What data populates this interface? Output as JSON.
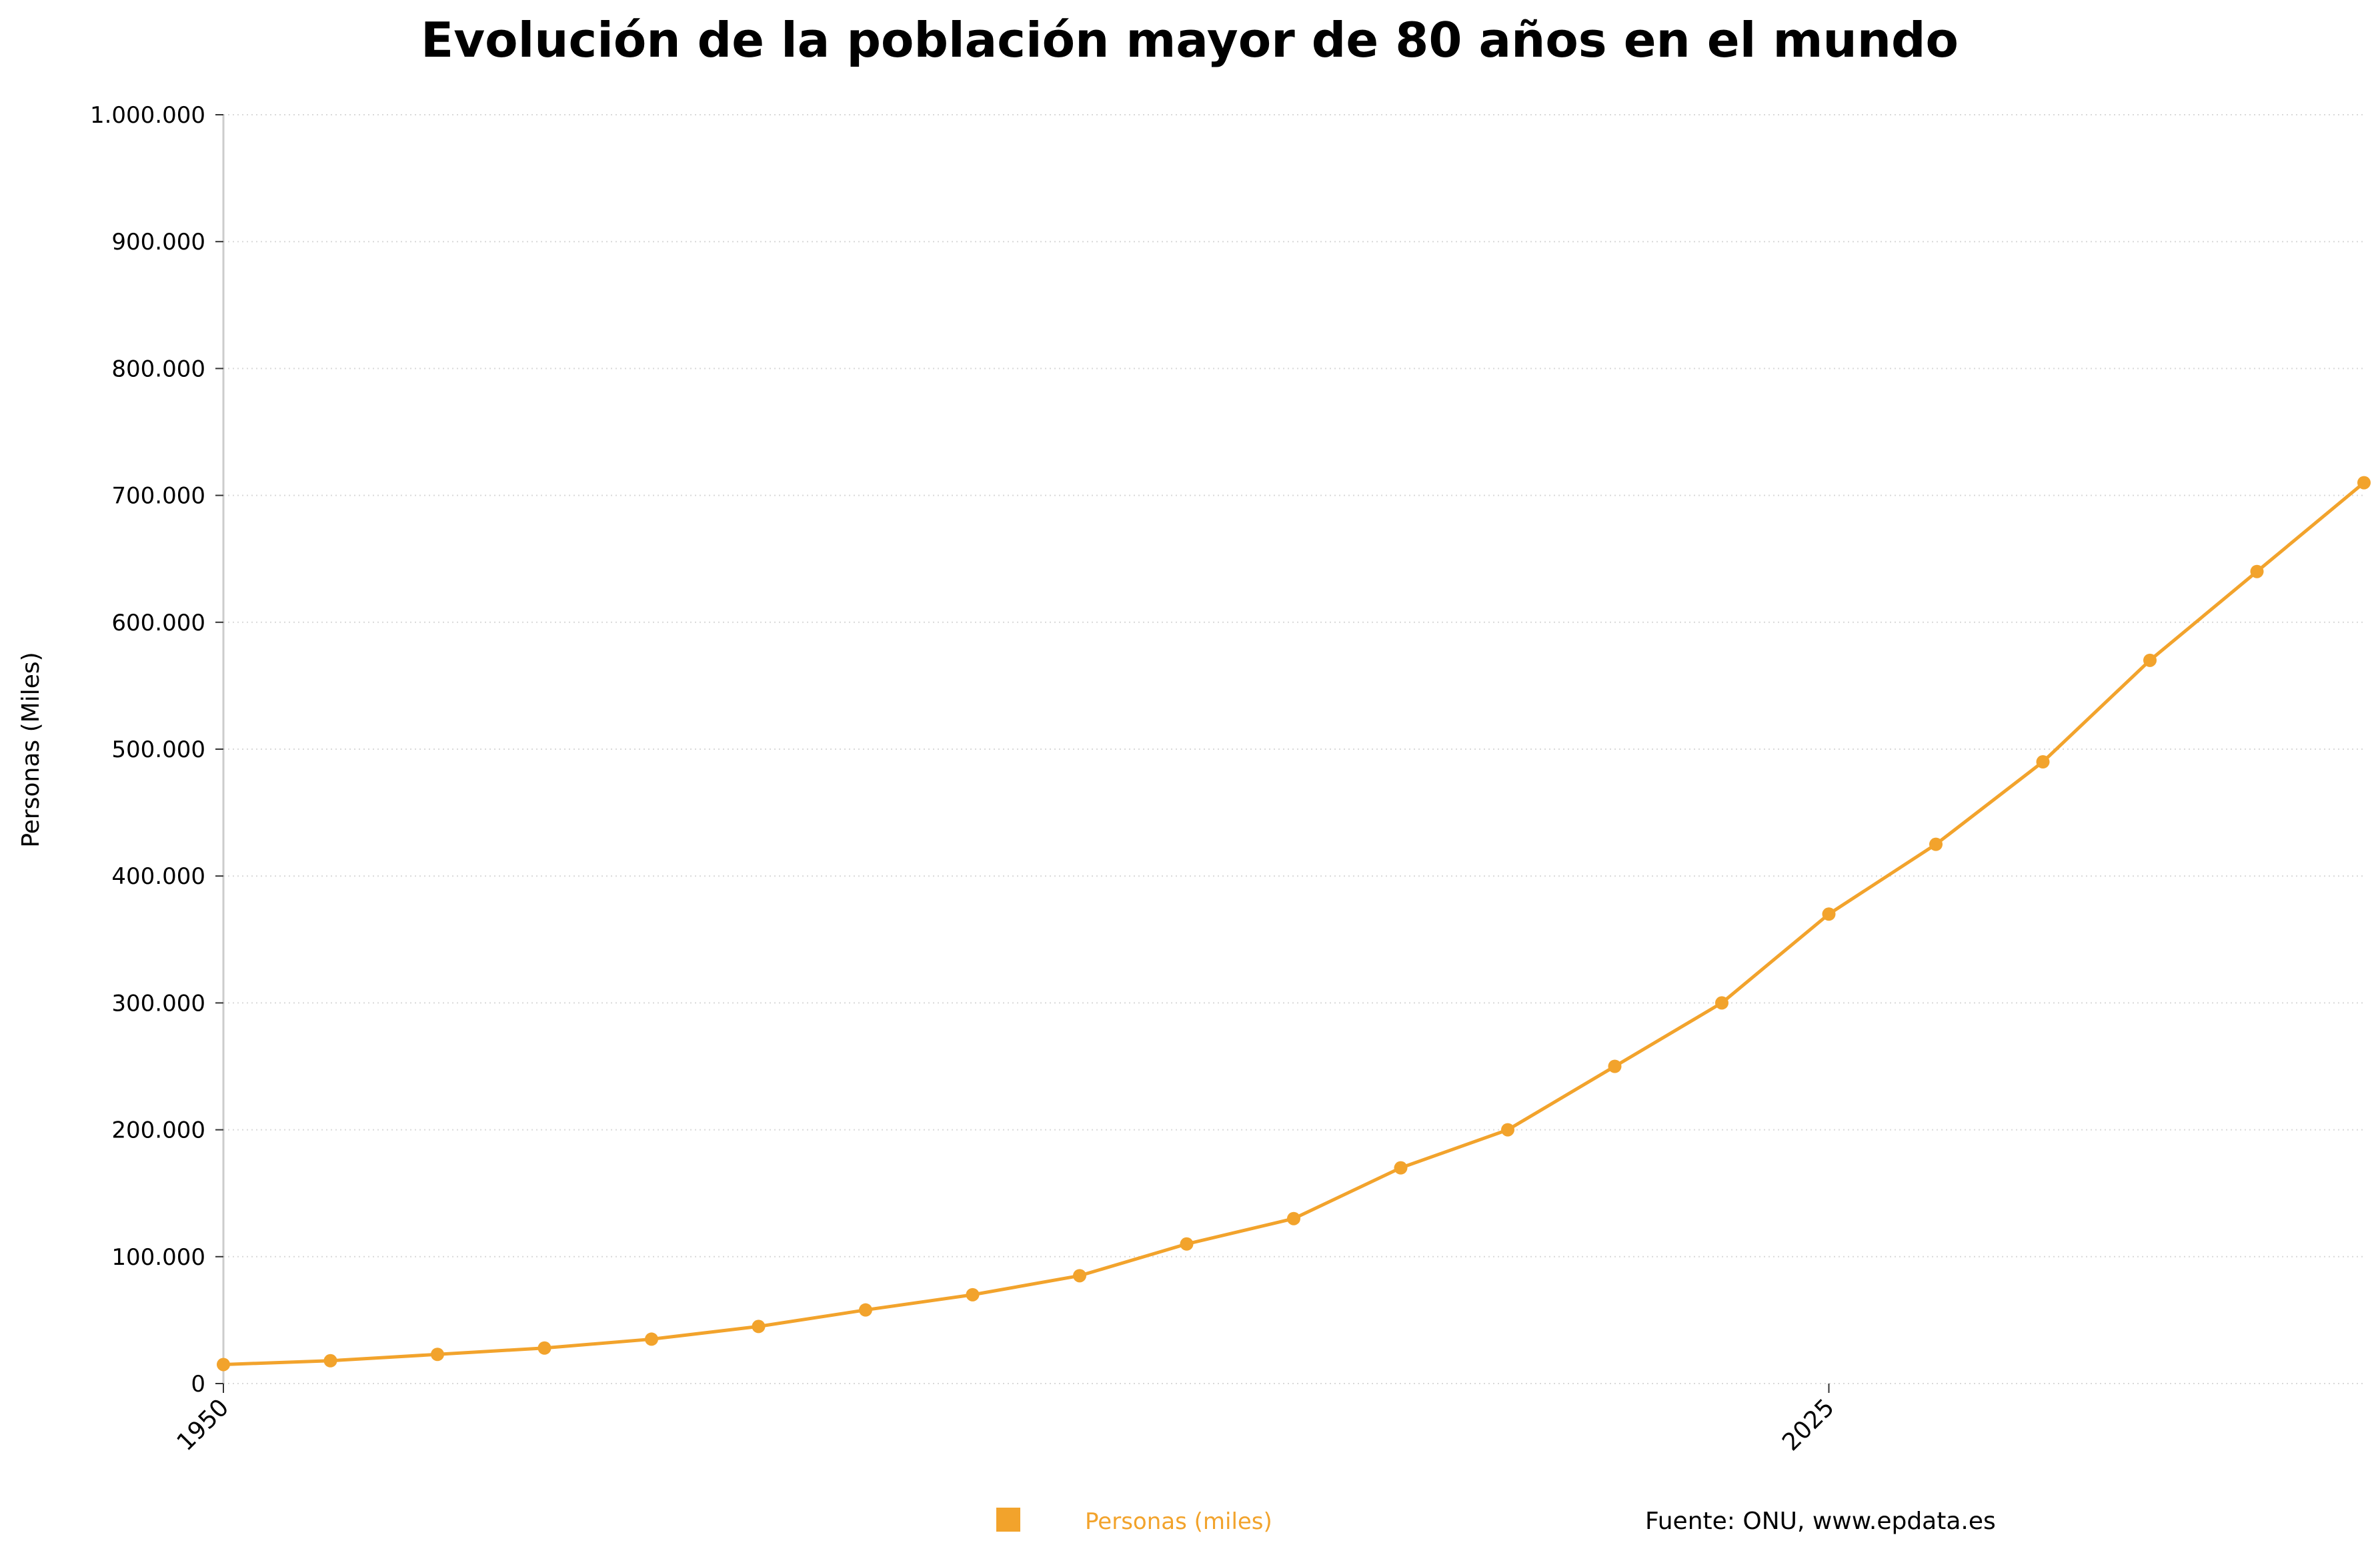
{
  "chart_data": {
    "type": "line",
    "title": "Evolución de la población mayor de 80 años en el mundo",
    "ylabel": "Personas (Miles)",
    "xlabel": "",
    "x": [
      1950,
      1955,
      1960,
      1965,
      1970,
      1975,
      1980,
      1985,
      1990,
      1995,
      2000,
      2005,
      2010,
      2015,
      2020,
      2025,
      2030,
      2035,
      2040,
      2045,
      2050
    ],
    "series": [
      {
        "name": "Personas (miles)",
        "values": [
          15000,
          18000,
          23000,
          28000,
          35000,
          45000,
          58000,
          70000,
          85000,
          110000,
          130000,
          170000,
          200000,
          250000,
          300000,
          370000,
          425000,
          490000,
          570000,
          640000,
          710000
        ],
        "color": "#f2a32c"
      }
    ],
    "xlim": [
      1950,
      2050
    ],
    "ylim": [
      0,
      1000000
    ],
    "y_ticks": [
      {
        "value": 0,
        "label": "0"
      },
      {
        "value": 100000,
        "label": "100.000"
      },
      {
        "value": 200000,
        "label": "200.000"
      },
      {
        "value": 300000,
        "label": "300.000"
      },
      {
        "value": 400000,
        "label": "400.000"
      },
      {
        "value": 500000,
        "label": "500.000"
      },
      {
        "value": 600000,
        "label": "600.000"
      },
      {
        "value": 700000,
        "label": "700.000"
      },
      {
        "value": 800000,
        "label": "800.000"
      },
      {
        "value": 900000,
        "label": "900.000"
      },
      {
        "value": 1000000,
        "label": "1.000.000"
      }
    ],
    "x_ticks": [
      {
        "value": 1950,
        "label": "1950"
      },
      {
        "value": 2025,
        "label": "2025"
      }
    ],
    "grid": "horizontal-dotted",
    "legend_position": "bottom-center",
    "source": "Fuente: ONU, www.epdata.es"
  }
}
